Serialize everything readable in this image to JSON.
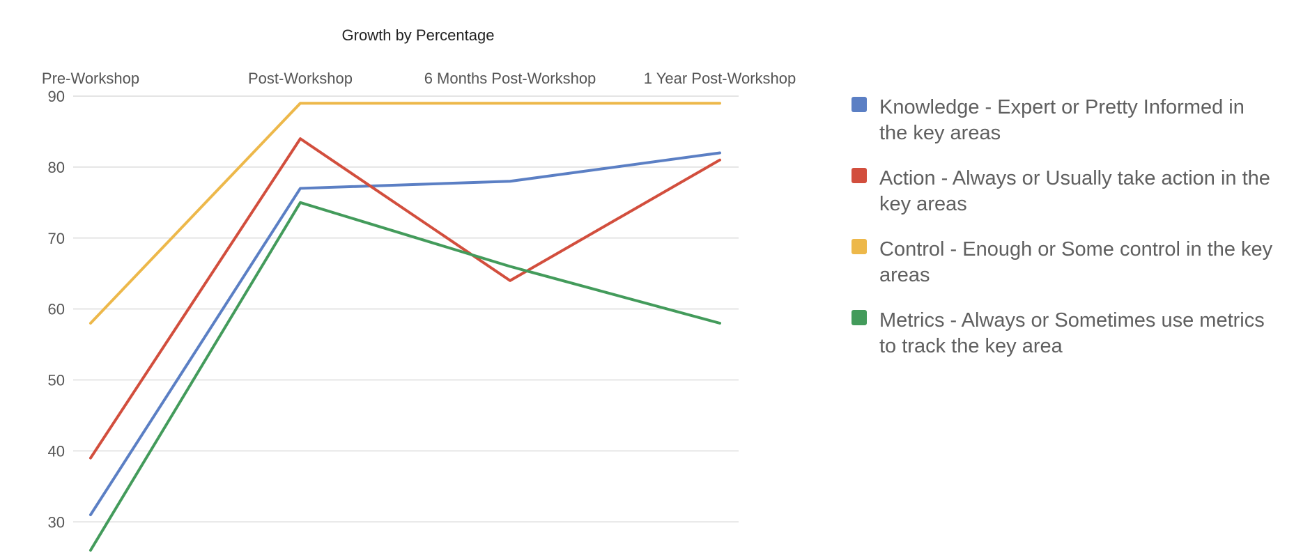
{
  "chart_data": {
    "type": "line",
    "title": "Growth by Percentage",
    "categories": [
      "Pre-Workshop",
      "Post-Workshop",
      "6 Months Post-Workshop",
      "1 Year Post-Workshop"
    ],
    "series": [
      {
        "name": "Knowledge - Expert or Pretty Informed in the key areas",
        "color": "#5b7fc4",
        "values": [
          31,
          77,
          78,
          82
        ]
      },
      {
        "name": "Action - Always or Usually take action in the key areas",
        "color": "#d24e3d",
        "values": [
          39,
          84,
          64,
          81
        ]
      },
      {
        "name": "Control - Enough or Some control in the key areas",
        "color": "#edb84a",
        "values": [
          58,
          89,
          89,
          89
        ]
      },
      {
        "name": "Metrics - Always or Sometimes use metrics to track the key area",
        "color": "#439b5b",
        "values": [
          26,
          75,
          66,
          58
        ]
      }
    ],
    "yticks": [
      30,
      40,
      50,
      60,
      70,
      80,
      90
    ],
    "ylim": [
      26,
      90
    ],
    "grid": true,
    "legend": "right"
  }
}
